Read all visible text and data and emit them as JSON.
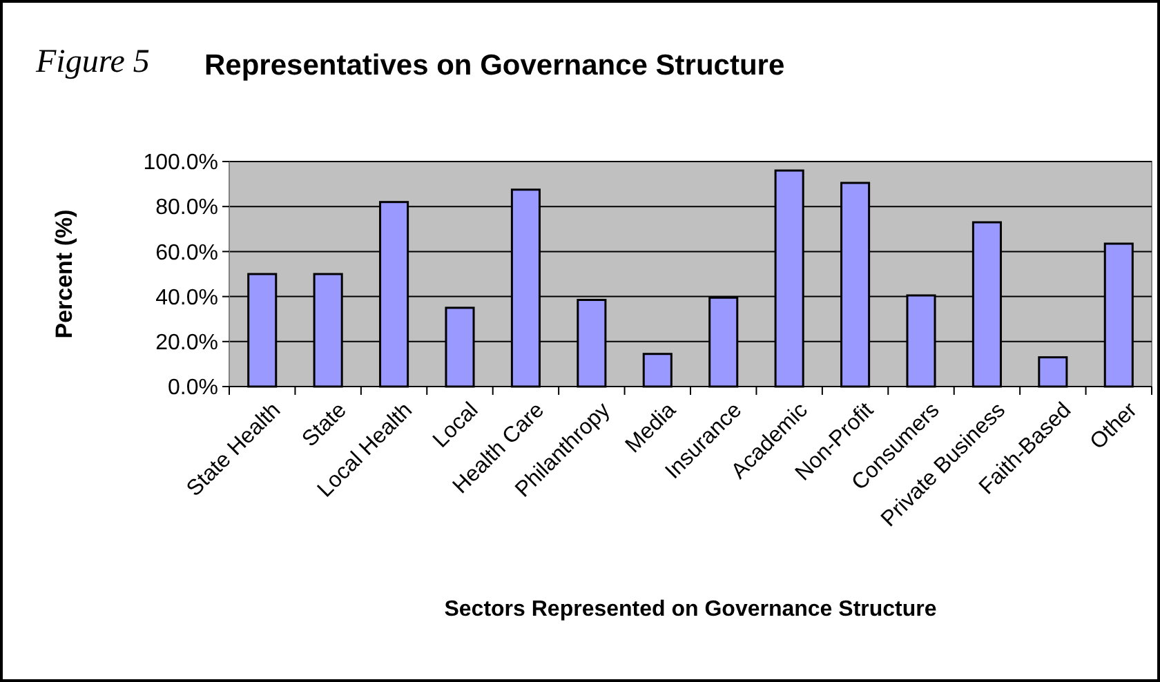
{
  "chart_data": {
    "type": "bar",
    "title": "Representatives on Governance Structure",
    "subtitle": "Figure 5",
    "xlabel": "Sectors Represented on Governance Structure",
    "ylabel": "Percent (%)",
    "categories": [
      "State Health",
      "State",
      "Local Health",
      "Local",
      "Health Care",
      "Philanthropy",
      "Media",
      "Insurance",
      "Academic",
      "Non-Profit",
      "Consumers",
      "Private Business",
      "Faith-Based",
      "Other"
    ],
    "values": [
      50,
      50,
      82,
      35,
      87.5,
      38.5,
      14.5,
      39.5,
      96,
      90.5,
      40.5,
      73,
      13,
      63.5
    ],
    "color": "#9999ff",
    "ylim": [
      0,
      100
    ],
    "yticks": [
      {
        "value": 0,
        "label": "0.0%"
      },
      {
        "value": 20,
        "label": "20.0%"
      },
      {
        "value": 40,
        "label": "40.0%"
      },
      {
        "value": 60,
        "label": "60.0%"
      },
      {
        "value": 80,
        "label": "80.0%"
      },
      {
        "value": 100,
        "label": "100.0%"
      }
    ],
    "grid": "y"
  }
}
